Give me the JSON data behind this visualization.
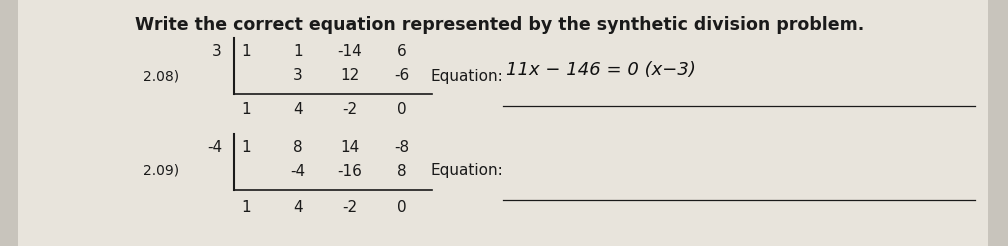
{
  "title": "Write the correct equation represented by the synthetic division problem.",
  "title_fontsize": 12.5,
  "bg_color": "#c8c4bc",
  "page_color": "#e8e4dc",
  "text_color": "#1a1a1a",
  "label_208": "2.08)",
  "label_209": "2.09)",
  "row208_divider": "3",
  "row208_top": [
    "1",
    "1",
    "-14",
    "6"
  ],
  "row208_mid": [
    "3",
    "12",
    "-6"
  ],
  "row208_bot": [
    "1",
    "4",
    "-2",
    "0"
  ],
  "row209_divider": "-4",
  "row209_top": [
    "1",
    "8",
    "14",
    "-8"
  ],
  "row209_mid": [
    "-4",
    "-16",
    "8"
  ],
  "row209_bot": [
    "1",
    "4",
    "-2",
    "0"
  ],
  "eq208_label": "Equation:",
  "eq208_answer": "11x − 146 = 0 (x−3)",
  "eq209_label": "Equation:",
  "eq209_answer": ""
}
